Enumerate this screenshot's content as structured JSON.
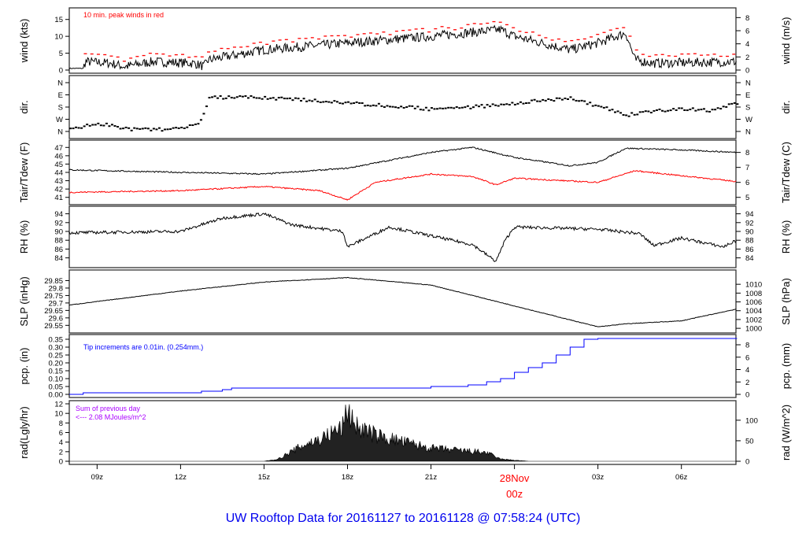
{
  "title": "UW Rooftop Data for 20161127  to  20161128 @ 07:58:24  (UTC)",
  "chart_data": [
    {
      "id": "wind",
      "type": "line",
      "ylabel_left": "wind (kts)",
      "ylabel_right": "wind (m/s)",
      "ylim": [
        0,
        17.5
      ],
      "yticks_left": [
        0,
        5,
        10,
        15
      ],
      "yticks_right": [
        0,
        2,
        4,
        6,
        8
      ],
      "right_factor": 0.5144,
      "annotation": "10 min. peak winds in red",
      "annotation_color": "#ff0000",
      "series": [
        {
          "color": "#000000",
          "points": [
            [
              "27 08:00",
              0.5
            ],
            [
              "27 08:30",
              0.5
            ],
            [
              "27 08:35",
              2.5
            ],
            [
              "27 09:30",
              2
            ],
            [
              "27 10:00",
              1
            ],
            [
              "27 11:00",
              2.5
            ],
            [
              "27 12:30",
              2
            ],
            [
              "27 12:50",
              1
            ],
            [
              "27 13:00",
              3
            ],
            [
              "27 15:00",
              6
            ],
            [
              "27 18:00",
              8
            ],
            [
              "27 21:00",
              10
            ],
            [
              "27 23:30",
              12
            ],
            [
              "28 00:00",
              10
            ],
            [
              "28 01:00",
              8
            ],
            [
              "28 02:00",
              6
            ],
            [
              "28 03:00",
              8
            ],
            [
              "28 04:00",
              11
            ],
            [
              "28 04:20",
              3
            ],
            [
              "28 05:00",
              2
            ],
            [
              "28 08:00",
              2.5
            ]
          ]
        }
      ]
    },
    {
      "id": "dir",
      "type": "scatter",
      "ylabel_left": "dir.",
      "ylabel_right": "dir.",
      "ylim": [
        0,
        360
      ],
      "yticks_left": [
        "N",
        "E",
        "S",
        "W",
        "N"
      ],
      "ytick_values": [
        0,
        90,
        180,
        270,
        360
      ],
      "series": [
        {
          "color": "#000000",
          "points": [
            [
              "27 08:00",
              340
            ],
            [
              "27 09:00",
              300
            ],
            [
              "27 10:00",
              340
            ],
            [
              "27 11:00",
              350
            ],
            [
              "27 12:00",
              330
            ],
            [
              "27 12:40",
              300
            ],
            [
              "27 13:00",
              110
            ],
            [
              "27 15:00",
              110
            ],
            [
              "27 18:00",
              150
            ],
            [
              "27 21:00",
              195
            ],
            [
              "27 22:30",
              180
            ],
            [
              "28 00:00",
              150
            ],
            [
              "28 02:00",
              115
            ],
            [
              "28 03:00",
              175
            ],
            [
              "28 04:00",
              240
            ],
            [
              "28 05:00",
              210
            ],
            [
              "28 06:00",
              190
            ],
            [
              "28 07:00",
              210
            ],
            [
              "28 08:00",
              150
            ]
          ]
        }
      ]
    },
    {
      "id": "temp",
      "type": "line",
      "ylabel_left": "Tair/Tdew (F)",
      "ylabel_right": "Tair/Tdew (C)",
      "ylim": [
        40.5,
        47.5
      ],
      "yticks_left": [
        41,
        42,
        43,
        44,
        45,
        46,
        47
      ],
      "yticks_right": [
        5,
        6,
        7,
        8
      ],
      "series": [
        {
          "color": "#000000",
          "points": [
            [
              "27 08:00",
              44.3
            ],
            [
              "27 12:00",
              44.0
            ],
            [
              "27 15:00",
              43.8
            ],
            [
              "27 18:00",
              44.5
            ],
            [
              "27 21:00",
              46.4
            ],
            [
              "27 22:30",
              47.0
            ],
            [
              "28 00:00",
              45.8
            ],
            [
              "28 02:00",
              44.8
            ],
            [
              "28 03:00",
              45.2
            ],
            [
              "28 04:00",
              46.9
            ],
            [
              "28 06:00",
              46.7
            ],
            [
              "28 08:00",
              46.4
            ]
          ]
        },
        {
          "color": "#ff0000",
          "points": [
            [
              "27 08:00",
              41.6
            ],
            [
              "27 12:00",
              41.8
            ],
            [
              "27 15:00",
              42.3
            ],
            [
              "27 17:00",
              41.8
            ],
            [
              "27 18:00",
              40.7
            ],
            [
              "27 19:00",
              42.8
            ],
            [
              "27 21:00",
              43.8
            ],
            [
              "27 22:30",
              43.5
            ],
            [
              "27 23:20",
              42.5
            ],
            [
              "28 00:00",
              43.3
            ],
            [
              "28 03:00",
              42.8
            ],
            [
              "28 04:20",
              44.2
            ],
            [
              "28 06:00",
              43.6
            ],
            [
              "28 08:00",
              42.9
            ]
          ]
        }
      ]
    },
    {
      "id": "rh",
      "type": "line",
      "ylabel_left": "RH (%)",
      "ylabel_right": "RH (%)",
      "ylim": [
        82.5,
        95
      ],
      "yticks_left": [
        84,
        86,
        88,
        90,
        92,
        94
      ],
      "yticks_right": [
        84,
        86,
        88,
        90,
        92,
        94
      ],
      "series": [
        {
          "color": "#000000",
          "points": [
            [
              "27 08:00",
              89.7
            ],
            [
              "27 12:00",
              90
            ],
            [
              "27 13:30",
              93
            ],
            [
              "27 15:00",
              94
            ],
            [
              "27 16:00",
              91.5
            ],
            [
              "27 17:50",
              90
            ],
            [
              "27 18:00",
              86.5
            ],
            [
              "27 18:30",
              88
            ],
            [
              "27 19:30",
              91
            ],
            [
              "27 21:00",
              89
            ],
            [
              "27 22:30",
              87
            ],
            [
              "27 23:20",
              83.2
            ],
            [
              "27 23:40",
              88
            ],
            [
              "28 00:00",
              91
            ],
            [
              "28 03:00",
              90.5
            ],
            [
              "28 04:30",
              89.5
            ],
            [
              "28 05:00",
              86.8
            ],
            [
              "28 06:00",
              88.5
            ],
            [
              "28 07:30",
              86.5
            ],
            [
              "28 08:00",
              88
            ]
          ]
        }
      ]
    },
    {
      "id": "slp",
      "type": "line",
      "ylabel_left": "SLP (inHg)",
      "ylabel_right": "SLP (hPa)",
      "ylim": [
        29.52,
        29.9
      ],
      "yticks_left": [
        29.55,
        29.6,
        29.65,
        29.7,
        29.75,
        29.8,
        29.85
      ],
      "yticks_right": [
        1000,
        1002,
        1004,
        1006,
        1008,
        1010
      ],
      "series": [
        {
          "color": "#000000",
          "points": [
            [
              "27 08:00",
              29.686
            ],
            [
              "27 12:00",
              29.78
            ],
            [
              "27 15:00",
              29.84
            ],
            [
              "27 18:00",
              29.87
            ],
            [
              "27 21:00",
              29.82
            ],
            [
              "28 00:00",
              29.68
            ],
            [
              "28 03:00",
              29.54
            ],
            [
              "28 04:00",
              29.56
            ],
            [
              "28 06:00",
              29.58
            ],
            [
              "28 08:00",
              29.66
            ]
          ]
        }
      ]
    },
    {
      "id": "pcp",
      "type": "step",
      "ylabel_left": "pcp. (in)",
      "ylabel_right": "pcp. (mm)",
      "ylim": [
        0,
        0.36
      ],
      "yticks_left": [
        "0.00",
        "0.05",
        "0.10",
        "0.15",
        "0.20",
        "0.25",
        "0.30",
        "0.35"
      ],
      "yticks_right": [
        0,
        2,
        4,
        6,
        8
      ],
      "annotation": "Tip increments are 0.01in. (0.254mm.)",
      "annotation_color": "#0000ff",
      "series": [
        {
          "color": "#0000ff",
          "points": [
            [
              "27 08:00",
              0
            ],
            [
              "27 08:30",
              0.01
            ],
            [
              "27 12:45",
              0.02
            ],
            [
              "27 13:30",
              0.03
            ],
            [
              "27 13:50",
              0.04
            ],
            [
              "27 21:00",
              0.05
            ],
            [
              "27 22:20",
              0.06
            ],
            [
              "27 23:00",
              0.08
            ],
            [
              "27 23:30",
              0.1
            ],
            [
              "28 00:00",
              0.14
            ],
            [
              "28 00:30",
              0.17
            ],
            [
              "28 01:00",
              0.2
            ],
            [
              "28 01:30",
              0.25
            ],
            [
              "28 02:00",
              0.3
            ],
            [
              "28 02:30",
              0.35
            ],
            [
              "28 03:00",
              0.355
            ],
            [
              "28 08:00",
              0.355
            ]
          ]
        }
      ]
    },
    {
      "id": "rad",
      "type": "area",
      "ylabel_left": "rad(Lgly/hr)",
      "ylabel_right": "rad (W/m^2)",
      "ylim": [
        0,
        12
      ],
      "yticks_left": [
        0,
        2,
        4,
        6,
        8,
        10,
        12
      ],
      "yticks_right": [
        0,
        50,
        100
      ],
      "annotation": [
        "Sum of previous day",
        "<--- 2.08 MJoules/m^2"
      ],
      "annotation_color": "#aa00ff",
      "series": [
        {
          "color": "#000000",
          "points": [
            [
              "27 08:00",
              0
            ],
            [
              "27 15:00",
              0
            ],
            [
              "27 15:30",
              0.5
            ],
            [
              "27 16:30",
              4
            ],
            [
              "27 17:00",
              5
            ],
            [
              "27 17:50",
              8
            ],
            [
              "27 18:00",
              12
            ],
            [
              "27 18:20",
              8
            ],
            [
              "27 19:00",
              6
            ],
            [
              "27 20:00",
              4.5
            ],
            [
              "27 21:00",
              3
            ],
            [
              "27 22:00",
              2.5
            ],
            [
              "27 23:00",
              2
            ],
            [
              "27 23:30",
              0.5
            ],
            [
              "28 00:30",
              0
            ],
            [
              "28 08:00",
              0
            ]
          ]
        }
      ]
    }
  ],
  "x_axis": {
    "ticks": [
      "09z",
      "12z",
      "15z",
      "18z",
      "21z",
      "00z",
      "03z",
      "06z"
    ],
    "date_label": "28Nov",
    "date_label_color": "#ff0000"
  }
}
